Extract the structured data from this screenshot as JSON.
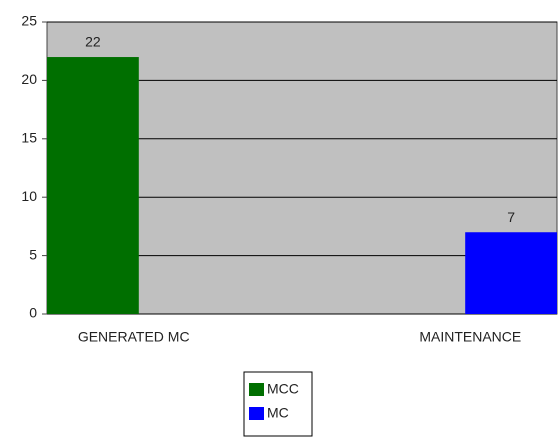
{
  "chart_data": {
    "type": "bar",
    "categories": [
      "GENERATED MC",
      "MAINTENANCE"
    ],
    "series": [
      {
        "name": "MCC",
        "color": "#006f00",
        "values": [
          22,
          null
        ]
      },
      {
        "name": "MC",
        "color": "#0000ff",
        "values": [
          null,
          7
        ]
      }
    ],
    "ylim": [
      0,
      25
    ],
    "yticks": [
      0,
      5,
      10,
      15,
      20,
      25
    ],
    "grid": true,
    "legend": "bottom"
  }
}
